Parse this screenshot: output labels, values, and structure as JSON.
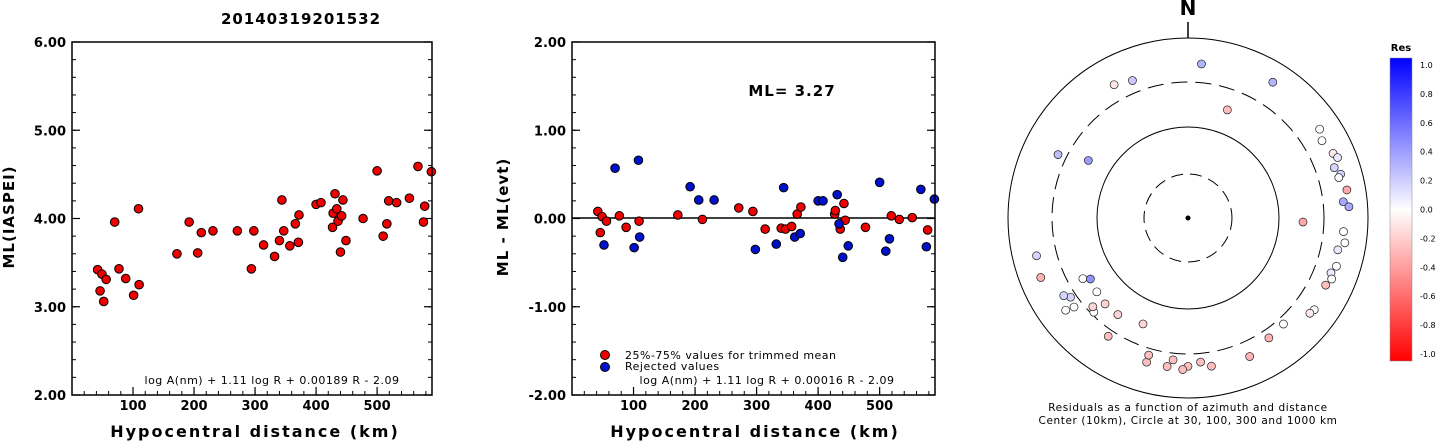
{
  "title": "20140319201532",
  "chart_data": [
    {
      "type": "scatter",
      "name": "ml-vs-distance",
      "xlabel": "Hypocentral distance (km)",
      "ylabel": "ML(IASPEI)",
      "xlim": [
        0,
        590
      ],
      "ylim": [
        2.0,
        6.0
      ],
      "xticks": [
        "100",
        "200",
        "300",
        "400",
        "500"
      ],
      "yticks": [
        "2.00",
        "3.00",
        "4.00",
        "5.00",
        "6.00"
      ],
      "formula": "log A(nm) + 1.11 log R + 0.00189 R - 2.09",
      "marker_color": "#ee0000",
      "points": [
        [
          42,
          3.42
        ],
        [
          46,
          3.18
        ],
        [
          49,
          3.37
        ],
        [
          52,
          3.06
        ],
        [
          56,
          3.31
        ],
        [
          70,
          3.96
        ],
        [
          77,
          3.43
        ],
        [
          88,
          3.32
        ],
        [
          101,
          3.13
        ],
        [
          109,
          4.11
        ],
        [
          110,
          3.25
        ],
        [
          172,
          3.6
        ],
        [
          192,
          3.96
        ],
        [
          206,
          3.61
        ],
        [
          212,
          3.84
        ],
        [
          231,
          3.86
        ],
        [
          271,
          3.86
        ],
        [
          294,
          3.43
        ],
        [
          298,
          3.86
        ],
        [
          314,
          3.7
        ],
        [
          332,
          3.57
        ],
        [
          340,
          3.75
        ],
        [
          344,
          4.21
        ],
        [
          347,
          3.86
        ],
        [
          357,
          3.69
        ],
        [
          366,
          3.94
        ],
        [
          371,
          3.73
        ],
        [
          372,
          4.04
        ],
        [
          400,
          4.16
        ],
        [
          408,
          4.18
        ],
        [
          427,
          3.9
        ],
        [
          428,
          4.06
        ],
        [
          431,
          4.28
        ],
        [
          434,
          4.11
        ],
        [
          436,
          3.97
        ],
        [
          440,
          3.62
        ],
        [
          442,
          4.03
        ],
        [
          444,
          4.21
        ],
        [
          449,
          3.75
        ],
        [
          477,
          4.0
        ],
        [
          500,
          4.54
        ],
        [
          510,
          3.8
        ],
        [
          516,
          3.94
        ],
        [
          519,
          4.2
        ],
        [
          532,
          4.18
        ],
        [
          553,
          4.23
        ],
        [
          567,
          4.59
        ],
        [
          576,
          3.96
        ],
        [
          578,
          4.14
        ],
        [
          589,
          4.53
        ]
      ]
    },
    {
      "type": "scatter",
      "name": "residual-vs-distance",
      "xlabel": "Hypocentral distance (km)",
      "ylabel": "ML - ML(evt)",
      "xlim": [
        0,
        590
      ],
      "ylim": [
        -2.0,
        2.0
      ],
      "xticks": [
        "100",
        "200",
        "300",
        "400",
        "500"
      ],
      "yticks": [
        "-2.00",
        "-1.00",
        "0.00",
        "1.00",
        "2.00"
      ],
      "formula": "log A(nm) + 1.11 log R + 0.00016 R - 2.09",
      "ml_label": "ML= 3.27",
      "legend": [
        {
          "label": "25%-75% values for trimmed mean",
          "color": "#ee0000"
        },
        {
          "label": "Rejected values",
          "color": "#0011cc"
        }
      ],
      "series": [
        {
          "name": "25%-75% values for trimmed mean",
          "color": "#ee0000",
          "points": [
            [
              42,
              0.08
            ],
            [
              46,
              -0.16
            ],
            [
              49,
              0.02
            ],
            [
              56,
              -0.03
            ],
            [
              77,
              0.03
            ],
            [
              88,
              -0.1
            ],
            [
              109,
              -0.03
            ],
            [
              172,
              0.04
            ],
            [
              212,
              -0.01
            ],
            [
              271,
              0.12
            ],
            [
              294,
              0.08
            ],
            [
              314,
              -0.12
            ],
            [
              340,
              -0.11
            ],
            [
              347,
              -0.12
            ],
            [
              357,
              -0.09
            ],
            [
              366,
              0.05
            ],
            [
              372,
              0.13
            ],
            [
              427,
              0.05
            ],
            [
              428,
              0.09
            ],
            [
              436,
              -0.12
            ],
            [
              442,
              0.17
            ],
            [
              444,
              -0.02
            ],
            [
              477,
              -0.1
            ],
            [
              519,
              0.03
            ],
            [
              532,
              -0.01
            ],
            [
              553,
              0.01
            ],
            [
              578,
              -0.13
            ]
          ]
        },
        {
          "name": "Rejected values",
          "color": "#0011cc",
          "points": [
            [
              52,
              -0.3
            ],
            [
              70,
              0.57
            ],
            [
              101,
              -0.33
            ],
            [
              108,
              0.66
            ],
            [
              110,
              -0.21
            ],
            [
              192,
              0.36
            ],
            [
              206,
              0.21
            ],
            [
              231,
              0.21
            ],
            [
              298,
              -0.35
            ],
            [
              332,
              -0.29
            ],
            [
              344,
              0.35
            ],
            [
              362,
              -0.21
            ],
            [
              371,
              -0.17
            ],
            [
              400,
              0.2
            ],
            [
              408,
              0.2
            ],
            [
              431,
              0.27
            ],
            [
              434,
              -0.06
            ],
            [
              440,
              -0.44
            ],
            [
              449,
              -0.31
            ],
            [
              500,
              0.41
            ],
            [
              510,
              -0.37
            ],
            [
              516,
              -0.23
            ],
            [
              567,
              0.33
            ],
            [
              576,
              -0.32
            ],
            [
              589,
              0.22
            ]
          ]
        }
      ]
    },
    {
      "type": "scatter",
      "name": "residuals-azimuth-distance",
      "north_label": "N",
      "caption_line1": "Residuals as a function of azimuth and distance",
      "caption_line2": "Center (10km), Circle at 30, 100, 300 and 1000 km",
      "rings_km": [
        30,
        100,
        300,
        1000
      ],
      "colorbar": {
        "title": "Res",
        "ticks": [
          "1.0",
          "0.8",
          "0.6",
          "0.4",
          "0.2",
          "0.0",
          "-0.2",
          "-0.4",
          "-0.6",
          "-0.8",
          "-1.0"
        ],
        "max_color": "#0000ff",
        "zero_color": "#ffffff",
        "min_color": "#ff0000"
      },
      "stations": [
        {
          "az": 5,
          "dist": 500,
          "res": 0.35
        },
        {
          "az": 32,
          "dist": 580,
          "res": 0.35
        },
        {
          "az": 338,
          "dist": 420,
          "res": 0.25
        },
        {
          "az": 331,
          "dist": 470,
          "res": -0.1
        },
        {
          "az": 20,
          "dist": 180,
          "res": -0.3
        },
        {
          "az": 300,
          "dist": 180,
          "res": 0.45
        },
        {
          "az": 296,
          "dist": 380,
          "res": 0.3
        },
        {
          "az": 56,
          "dist": 560,
          "res": 0.0
        },
        {
          "az": 60,
          "dist": 500,
          "res": 0.0
        },
        {
          "az": 66,
          "dist": 560,
          "res": -0.1
        },
        {
          "az": 68,
          "dist": 600,
          "res": 0.1
        },
        {
          "az": 71,
          "dist": 500,
          "res": 0.2
        },
        {
          "az": 74,
          "dist": 560,
          "res": 0.2
        },
        {
          "az": 75,
          "dist": 520,
          "res": 0.0
        },
        {
          "az": 80,
          "dist": 600,
          "res": -0.4
        },
        {
          "az": 84,
          "dist": 520,
          "res": 0.4
        },
        {
          "az": 86,
          "dist": 600,
          "res": 0.4
        },
        {
          "az": 95,
          "dist": 520,
          "res": 0.0
        },
        {
          "az": 99,
          "dist": 560,
          "res": 0.0
        },
        {
          "az": 102,
          "dist": 480,
          "res": 0.1
        },
        {
          "az": 108,
          "dist": 520,
          "res": 0.0
        },
        {
          "az": 111,
          "dist": 480,
          "res": 0.1
        },
        {
          "az": 113,
          "dist": 520,
          "res": 0.0
        },
        {
          "az": 116,
          "dist": 480,
          "res": -0.3
        },
        {
          "az": 126,
          "dist": 520,
          "res": 0.0
        },
        {
          "az": 128,
          "dist": 500,
          "res": -0.1
        },
        {
          "az": 138,
          "dist": 360,
          "res": 0.0
        },
        {
          "az": 92,
          "dist": 180,
          "res": -0.4
        },
        {
          "az": 171,
          "dist": 440,
          "res": -0.3
        },
        {
          "az": 175,
          "dist": 380,
          "res": -0.3
        },
        {
          "az": 180,
          "dist": 420,
          "res": -0.3
        },
        {
          "az": 182,
          "dist": 460,
          "res": -0.3
        },
        {
          "az": 186,
          "dist": 360,
          "res": -0.3
        },
        {
          "az": 188,
          "dist": 440,
          "res": -0.3
        },
        {
          "az": 196,
          "dist": 440,
          "res": -0.3
        },
        {
          "az": 196,
          "dist": 360,
          "res": -0.3
        },
        {
          "az": 146,
          "dist": 380,
          "res": -0.35
        },
        {
          "az": 156,
          "dist": 460,
          "res": -0.35
        },
        {
          "az": 214,
          "dist": 360,
          "res": -0.3
        },
        {
          "az": 203,
          "dist": 180,
          "res": -0.2
        },
        {
          "az": 216,
          "dist": 200,
          "res": -0.2
        },
        {
          "az": 224,
          "dist": 200,
          "res": -0.2
        },
        {
          "az": 225,
          "dist": 280,
          "res": 0.0
        },
        {
          "az": 231,
          "dist": 190,
          "res": 0.0
        },
        {
          "az": 227,
          "dist": 260,
          "res": -0.2
        },
        {
          "az": 240,
          "dist": 210,
          "res": 0.0
        },
        {
          "az": 238,
          "dist": 180,
          "res": 0.5
        },
        {
          "az": 232,
          "dist": 380,
          "res": 0.0
        },
        {
          "az": 233,
          "dist": 480,
          "res": 0.0
        },
        {
          "az": 236,
          "dist": 350,
          "res": 0.2
        },
        {
          "az": 238,
          "dist": 400,
          "res": 0.2
        },
        {
          "az": 248,
          "dist": 560,
          "res": -0.35
        },
        {
          "az": 256,
          "dist": 520,
          "res": 0.2
        }
      ]
    }
  ]
}
